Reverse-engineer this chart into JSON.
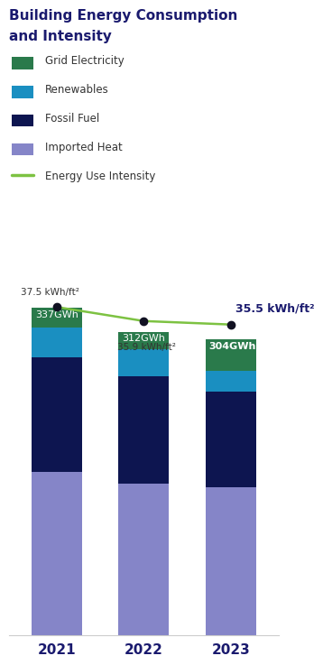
{
  "title_line1": "Building Energy Consumption",
  "title_line2": "and Intensity",
  "title_color": "#1a1a6e",
  "categories": [
    "2021",
    "2022",
    "2023"
  ],
  "bar_labels": [
    "337GWh",
    "312GWh",
    "304GWh"
  ],
  "segments": {
    "Imported Heat": [
      168,
      156,
      152
    ],
    "Fossil Fuel": [
      118,
      110,
      98
    ],
    "Renewables": [
      30,
      28,
      22
    ],
    "Grid Electricity": [
      21,
      18,
      32
    ]
  },
  "colors": {
    "Grid Electricity": "#2a7a4b",
    "Renewables": "#1a8fc1",
    "Fossil Fuel": "#0d1550",
    "Imported Heat": "#8585c8"
  },
  "legend_items": [
    "Grid Electricity",
    "Renewables",
    "Fossil Fuel",
    "Imported Heat",
    "Energy Use Intensity"
  ],
  "eui_values": [
    37.5,
    35.9,
    35.5
  ],
  "eui_labels": [
    "37.5 kWh/ft²",
    "35.9 kWh/ft²",
    "35.5 kWh/ft²"
  ],
  "eui_label_bold": [
    false,
    false,
    true
  ],
  "eui_line_color": "#7dc242",
  "eui_marker_color": "#111122",
  "bar_label_color": "#ffffff",
  "xlabel_color": "#1a1a6e",
  "background_color": "#ffffff"
}
